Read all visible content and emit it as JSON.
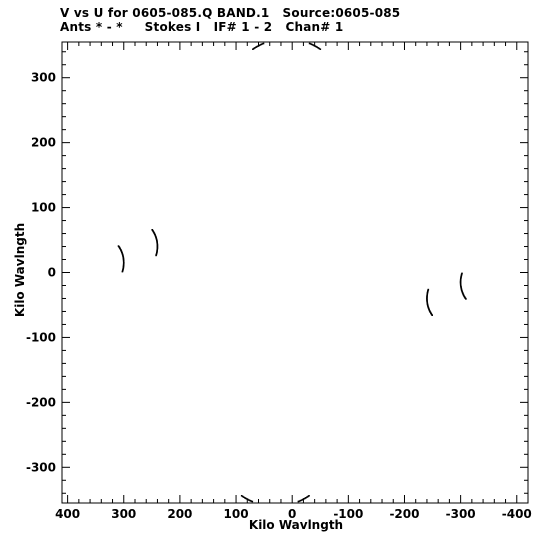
{
  "chart_data": {
    "type": "scatter",
    "title": "V vs U for 0605-085.Q BAND.1   Source:0605-085",
    "subtitle": "Ants * - *     Stokes I   IF# 1 - 2   Chan# 1",
    "xlabel": "Kilo Wavlngth",
    "ylabel": "Kilo Wavlngth",
    "xlim": [
      410,
      -420
    ],
    "ylim": [
      -355,
      355
    ],
    "xticks": [
      400,
      300,
      200,
      100,
      0,
      -100,
      -200,
      -300,
      -400
    ],
    "yticks": [
      300,
      200,
      100,
      0,
      -100,
      -200,
      -300
    ],
    "grid": false,
    "series": [
      {
        "arcs": [
          {
            "u": 30,
            "v": -240,
            "r": 120,
            "a": 300,
            "b": 240,
            "n": 60
          },
          {
            "u": 30,
            "v": -245,
            "r": 180,
            "a": 300,
            "b": 240,
            "n": 60
          },
          {
            "u": 30,
            "v": -250,
            "r": 240,
            "a": 300,
            "b": 240,
            "n": 60
          },
          {
            "u": 30,
            "v": -255,
            "r": 300,
            "a": 298,
            "b": 242,
            "n": 60
          },
          {
            "u": 30,
            "v": -255,
            "r": 360,
            "a": 298,
            "b": 242,
            "n": 60
          },
          {
            "u": 30,
            "v": -255,
            "r": 420,
            "a": 295,
            "b": 245,
            "n": 60
          },
          {
            "u": 30,
            "v": -255,
            "r": 480,
            "a": 292,
            "b": 248,
            "n": 60
          },
          {
            "u": 30,
            "v": -255,
            "r": 540,
            "a": 290,
            "b": 250,
            "n": 60
          },
          {
            "u": 30,
            "v": -255,
            "r": 600,
            "a": 288,
            "b": 252,
            "n": 60
          },
          {
            "u": 10,
            "v": 240,
            "r": 120,
            "a": 120,
            "b": 60,
            "n": 60
          },
          {
            "u": 10,
            "v": 245,
            "r": 180,
            "a": 120,
            "b": 60,
            "n": 60
          },
          {
            "u": 10,
            "v": 250,
            "r": 240,
            "a": 120,
            "b": 60,
            "n": 60
          },
          {
            "u": 10,
            "v": 255,
            "r": 300,
            "a": 118,
            "b": 62,
            "n": 60
          },
          {
            "u": 10,
            "v": 255,
            "r": 360,
            "a": 118,
            "b": 62,
            "n": 60
          },
          {
            "u": 10,
            "v": 255,
            "r": 420,
            "a": 115,
            "b": 65,
            "n": 60
          },
          {
            "u": 10,
            "v": 255,
            "r": 480,
            "a": 112,
            "b": 68,
            "n": 60
          },
          {
            "u": 10,
            "v": 255,
            "r": 540,
            "a": 110,
            "b": 70,
            "n": 60
          },
          {
            "u": 10,
            "v": 255,
            "r": 600,
            "a": 108,
            "b": 72,
            "n": 60
          },
          {
            "u": 340,
            "v": 15,
            "r": 40,
            "a": 200,
            "b": 140,
            "n": 30
          },
          {
            "u": 280,
            "v": 40,
            "r": 40,
            "a": 200,
            "b": 140,
            "n": 30
          },
          {
            "u": -340,
            "v": -15,
            "r": 40,
            "a": 20,
            "b": -40,
            "n": 30
          },
          {
            "u": -280,
            "v": -40,
            "r": 40,
            "a": 20,
            "b": -40,
            "n": 30
          }
        ]
      }
    ]
  }
}
